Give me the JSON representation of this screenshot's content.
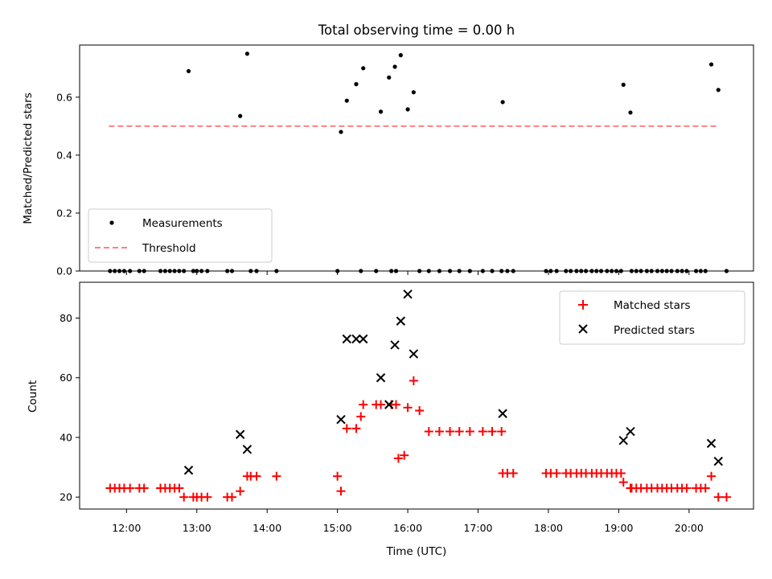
{
  "chart_data": [
    {
      "type": "scatter",
      "title": "Total observing time = 0.00 h",
      "xlabel": "",
      "ylabel": "Matched/Predicted stars",
      "ylim": [
        0,
        0.78
      ],
      "yticks": [
        0.0,
        0.2,
        0.4,
        0.6
      ],
      "ytick_labels": [
        "0.0",
        "0.2",
        "0.4",
        "0.6"
      ],
      "grid": false,
      "legend": {
        "position": "lower-left",
        "entries": [
          "Measurements",
          "Threshold"
        ]
      },
      "threshold": {
        "name": "Threshold",
        "value": 0.5,
        "x": [
          "11:45",
          "20:25"
        ],
        "color": "#ff8080"
      },
      "series": [
        {
          "name": "Measurements",
          "color": "#000000",
          "points": [
            [
              "11:46",
              0
            ],
            [
              "11:50",
              0
            ],
            [
              "11:54",
              0
            ],
            [
              "11:58",
              0
            ],
            [
              "12:03",
              0
            ],
            [
              "12:11",
              0
            ],
            [
              "12:15",
              0
            ],
            [
              "12:29",
              0
            ],
            [
              "12:33",
              0
            ],
            [
              "12:37",
              0
            ],
            [
              "12:41",
              0
            ],
            [
              "12:45",
              0
            ],
            [
              "12:49",
              0
            ],
            [
              "12:57",
              0
            ],
            [
              "13:00",
              0
            ],
            [
              "13:04",
              0
            ],
            [
              "13:09",
              0
            ],
            [
              "13:26",
              0
            ],
            [
              "13:30",
              0
            ],
            [
              "13:46",
              0
            ],
            [
              "13:51",
              0
            ],
            [
              "14:08",
              0
            ],
            [
              "15:00",
              0
            ],
            [
              "15:20",
              0
            ],
            [
              "15:33",
              0
            ],
            [
              "15:46",
              0
            ],
            [
              "15:50",
              0
            ],
            [
              "16:10",
              0
            ],
            [
              "16:18",
              0
            ],
            [
              "16:27",
              0
            ],
            [
              "16:36",
              0
            ],
            [
              "16:44",
              0
            ],
            [
              "16:53",
              0
            ],
            [
              "17:04",
              0
            ],
            [
              "17:12",
              0
            ],
            [
              "17:20",
              0
            ],
            [
              "17:25",
              0
            ],
            [
              "17:30",
              0
            ],
            [
              "17:58",
              0
            ],
            [
              "18:02",
              0
            ],
            [
              "18:07",
              0
            ],
            [
              "18:15",
              0
            ],
            [
              "18:19",
              0
            ],
            [
              "18:24",
              0
            ],
            [
              "18:28",
              0
            ],
            [
              "18:32",
              0
            ],
            [
              "18:37",
              0
            ],
            [
              "18:41",
              0
            ],
            [
              "18:45",
              0
            ],
            [
              "18:50",
              0
            ],
            [
              "18:54",
              0
            ],
            [
              "18:58",
              0
            ],
            [
              "19:02",
              0
            ],
            [
              "19:11",
              0
            ],
            [
              "19:15",
              0
            ],
            [
              "19:19",
              0
            ],
            [
              "19:24",
              0
            ],
            [
              "19:28",
              0
            ],
            [
              "19:33",
              0
            ],
            [
              "19:37",
              0
            ],
            [
              "19:41",
              0
            ],
            [
              "19:45",
              0
            ],
            [
              "19:50",
              0
            ],
            [
              "19:54",
              0
            ],
            [
              "19:58",
              0
            ],
            [
              "20:06",
              0
            ],
            [
              "20:10",
              0
            ],
            [
              "20:14",
              0
            ],
            [
              "20:32",
              0
            ],
            [
              "12:53",
              0.69
            ],
            [
              "13:37",
              0.535
            ],
            [
              "13:43",
              0.75
            ],
            [
              "15:03",
              0.48
            ],
            [
              "15:08",
              0.588
            ],
            [
              "15:16",
              0.645
            ],
            [
              "15:22",
              0.7
            ],
            [
              "15:37",
              0.55
            ],
            [
              "15:44",
              0.668
            ],
            [
              "15:49",
              0.705
            ],
            [
              "15:54",
              0.745
            ],
            [
              "16:00",
              0.558
            ],
            [
              "16:05",
              0.617
            ],
            [
              "17:21",
              0.583
            ],
            [
              "19:04",
              0.643
            ],
            [
              "19:10",
              0.547
            ],
            [
              "20:19",
              0.713
            ],
            [
              "20:25",
              0.625
            ]
          ]
        }
      ]
    },
    {
      "type": "scatter",
      "title": "",
      "xlabel": "Time (UTC)",
      "ylabel": "Count",
      "ylim": [
        16,
        92
      ],
      "yticks": [
        20,
        40,
        60,
        80
      ],
      "ytick_labels": [
        "20",
        "40",
        "60",
        "80"
      ],
      "xlim": [
        "11:20",
        "20:55"
      ],
      "xticks": [
        "12:00",
        "13:00",
        "14:00",
        "15:00",
        "16:00",
        "17:00",
        "18:00",
        "19:00",
        "20:00"
      ],
      "xtick_labels": [
        "12:00",
        "13:00",
        "14:00",
        "15:00",
        "16:00",
        "17:00",
        "18:00",
        "19:00",
        "20:00"
      ],
      "grid": false,
      "legend": {
        "position": "top-right",
        "entries": [
          "Matched stars",
          "Predicted stars"
        ]
      },
      "series": [
        {
          "name": "Matched stars",
          "color": "#ff0000",
          "marker": "plus",
          "points": [
            [
              "11:46",
              23
            ],
            [
              "11:50",
              23
            ],
            [
              "11:54",
              23
            ],
            [
              "11:58",
              23
            ],
            [
              "12:03",
              23
            ],
            [
              "12:11",
              23
            ],
            [
              "12:15",
              23
            ],
            [
              "12:29",
              23
            ],
            [
              "12:33",
              23
            ],
            [
              "12:37",
              23
            ],
            [
              "12:41",
              23
            ],
            [
              "12:45",
              23
            ],
            [
              "12:49",
              20
            ],
            [
              "12:57",
              20
            ],
            [
              "13:00",
              20
            ],
            [
              "13:04",
              20
            ],
            [
              "13:09",
              20
            ],
            [
              "13:26",
              20
            ],
            [
              "13:30",
              20
            ],
            [
              "13:37",
              22
            ],
            [
              "13:43",
              27
            ],
            [
              "13:46",
              27
            ],
            [
              "13:51",
              27
            ],
            [
              "14:08",
              27
            ],
            [
              "15:00",
              27
            ],
            [
              "15:03",
              22
            ],
            [
              "15:08",
              43
            ],
            [
              "15:16",
              43
            ],
            [
              "15:20",
              47
            ],
            [
              "15:22",
              51
            ],
            [
              "15:33",
              51
            ],
            [
              "15:37",
              51
            ],
            [
              "15:46",
              51
            ],
            [
              "15:50",
              51
            ],
            [
              "15:52",
              33
            ],
            [
              "15:57",
              34
            ],
            [
              "16:00",
              50
            ],
            [
              "16:05",
              59
            ],
            [
              "16:10",
              49
            ],
            [
              "16:18",
              42
            ],
            [
              "16:27",
              42
            ],
            [
              "16:36",
              42
            ],
            [
              "16:44",
              42
            ],
            [
              "16:53",
              42
            ],
            [
              "17:04",
              42
            ],
            [
              "17:12",
              42
            ],
            [
              "17:20",
              42
            ],
            [
              "17:21",
              28
            ],
            [
              "17:25",
              28
            ],
            [
              "17:30",
              28
            ],
            [
              "17:58",
              28
            ],
            [
              "18:02",
              28
            ],
            [
              "18:07",
              28
            ],
            [
              "18:15",
              28
            ],
            [
              "18:19",
              28
            ],
            [
              "18:24",
              28
            ],
            [
              "18:28",
              28
            ],
            [
              "18:32",
              28
            ],
            [
              "18:37",
              28
            ],
            [
              "18:41",
              28
            ],
            [
              "18:45",
              28
            ],
            [
              "18:50",
              28
            ],
            [
              "18:54",
              28
            ],
            [
              "18:58",
              28
            ],
            [
              "19:02",
              28
            ],
            [
              "19:04",
              25
            ],
            [
              "19:10",
              23
            ],
            [
              "19:11",
              23
            ],
            [
              "19:15",
              23
            ],
            [
              "19:19",
              23
            ],
            [
              "19:24",
              23
            ],
            [
              "19:28",
              23
            ],
            [
              "19:33",
              23
            ],
            [
              "19:37",
              23
            ],
            [
              "19:41",
              23
            ],
            [
              "19:45",
              23
            ],
            [
              "19:50",
              23
            ],
            [
              "19:54",
              23
            ],
            [
              "19:58",
              23
            ],
            [
              "20:06",
              23
            ],
            [
              "20:10",
              23
            ],
            [
              "20:14",
              23
            ],
            [
              "20:19",
              27
            ],
            [
              "20:25",
              20
            ],
            [
              "20:32",
              20
            ]
          ]
        },
        {
          "name": "Predicted stars",
          "color": "#000000",
          "marker": "x",
          "points": [
            [
              "12:53",
              29
            ],
            [
              "13:37",
              41
            ],
            [
              "13:43",
              36
            ],
            [
              "15:03",
              46
            ],
            [
              "15:08",
              73
            ],
            [
              "15:16",
              73
            ],
            [
              "15:22",
              73
            ],
            [
              "15:37",
              60
            ],
            [
              "15:44",
              51
            ],
            [
              "15:49",
              71
            ],
            [
              "15:54",
              79
            ],
            [
              "16:00",
              88
            ],
            [
              "16:05",
              68
            ],
            [
              "17:21",
              48
            ],
            [
              "19:04",
              39
            ],
            [
              "19:10",
              42
            ],
            [
              "20:19",
              38
            ],
            [
              "20:25",
              32
            ]
          ]
        }
      ]
    }
  ]
}
